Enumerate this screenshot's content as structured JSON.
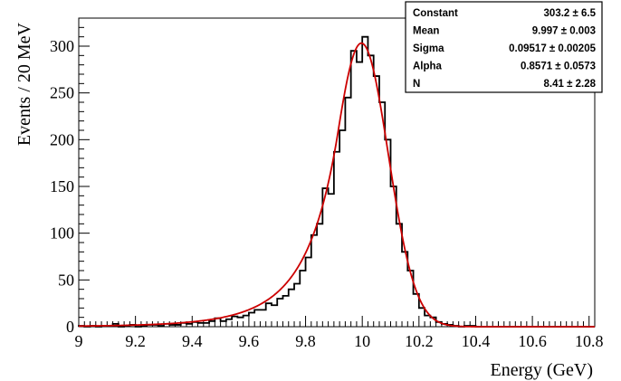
{
  "chart_data": {
    "type": "histogram",
    "xlabel": "Energy    (GeV)",
    "ylabel": "Events / 20 MeV",
    "xlim": [
      9.0,
      10.82
    ],
    "ylim": [
      0,
      330
    ],
    "bin_width": 0.02,
    "x_ticks": [
      "9",
      "9.2",
      "9.4",
      "9.6",
      "9.8",
      "10",
      "10.2",
      "10.4",
      "10.6",
      "10.8"
    ],
    "y_ticks": [
      "0",
      "50",
      "100",
      "150",
      "200",
      "250",
      "300"
    ],
    "bin_low_edges": [
      9.0,
      9.02,
      9.04,
      9.06,
      9.08,
      9.1,
      9.12,
      9.14,
      9.16,
      9.18,
      9.2,
      9.22,
      9.24,
      9.26,
      9.28,
      9.3,
      9.32,
      9.34,
      9.36,
      9.38,
      9.4,
      9.42,
      9.44,
      9.46,
      9.48,
      9.5,
      9.52,
      9.54,
      9.56,
      9.58,
      9.6,
      9.62,
      9.64,
      9.66,
      9.68,
      9.7,
      9.72,
      9.74,
      9.76,
      9.78,
      9.8,
      9.82,
      9.84,
      9.86,
      9.88,
      9.9,
      9.92,
      9.94,
      9.96,
      9.98,
      10.0,
      10.02,
      10.04,
      10.06,
      10.08,
      10.1,
      10.12,
      10.14,
      10.16,
      10.18,
      10.2,
      10.22,
      10.24,
      10.26,
      10.28,
      10.3,
      10.32,
      10.34,
      10.36,
      10.38
    ],
    "counts": [
      1,
      0,
      1,
      0,
      1,
      1,
      3,
      0,
      1,
      2,
      0,
      1,
      2,
      2,
      1,
      3,
      2,
      2,
      4,
      3,
      5,
      4,
      4,
      6,
      9,
      6,
      8,
      11,
      10,
      12,
      15,
      18,
      18,
      25,
      23,
      30,
      33,
      40,
      46,
      60,
      74,
      98,
      110,
      148,
      142,
      187,
      210,
      245,
      295,
      283,
      310,
      290,
      268,
      240,
      200,
      150,
      110,
      80,
      60,
      35,
      20,
      12,
      10,
      5,
      3,
      2,
      1,
      0,
      1,
      1
    ],
    "fit_curve": {
      "name": "Crystal Ball",
      "constant": 303.2,
      "mean": 9.997,
      "sigma": 0.09517,
      "alpha": 0.8571,
      "n": 8.41
    },
    "histogram_color": "#000000",
    "fit_color": "#cc0000"
  },
  "stats_box": {
    "rows": [
      {
        "label": "Constant",
        "value": "303.2 ± 6.5"
      },
      {
        "label": "Mean",
        "value": "9.997 ± 0.003"
      },
      {
        "label": "Sigma",
        "value": "0.09517 ± 0.00205"
      },
      {
        "label": "Alpha",
        "value": "0.8571 ± 0.0573"
      },
      {
        "label": "N",
        "value": "8.41 ± 2.28"
      }
    ]
  }
}
